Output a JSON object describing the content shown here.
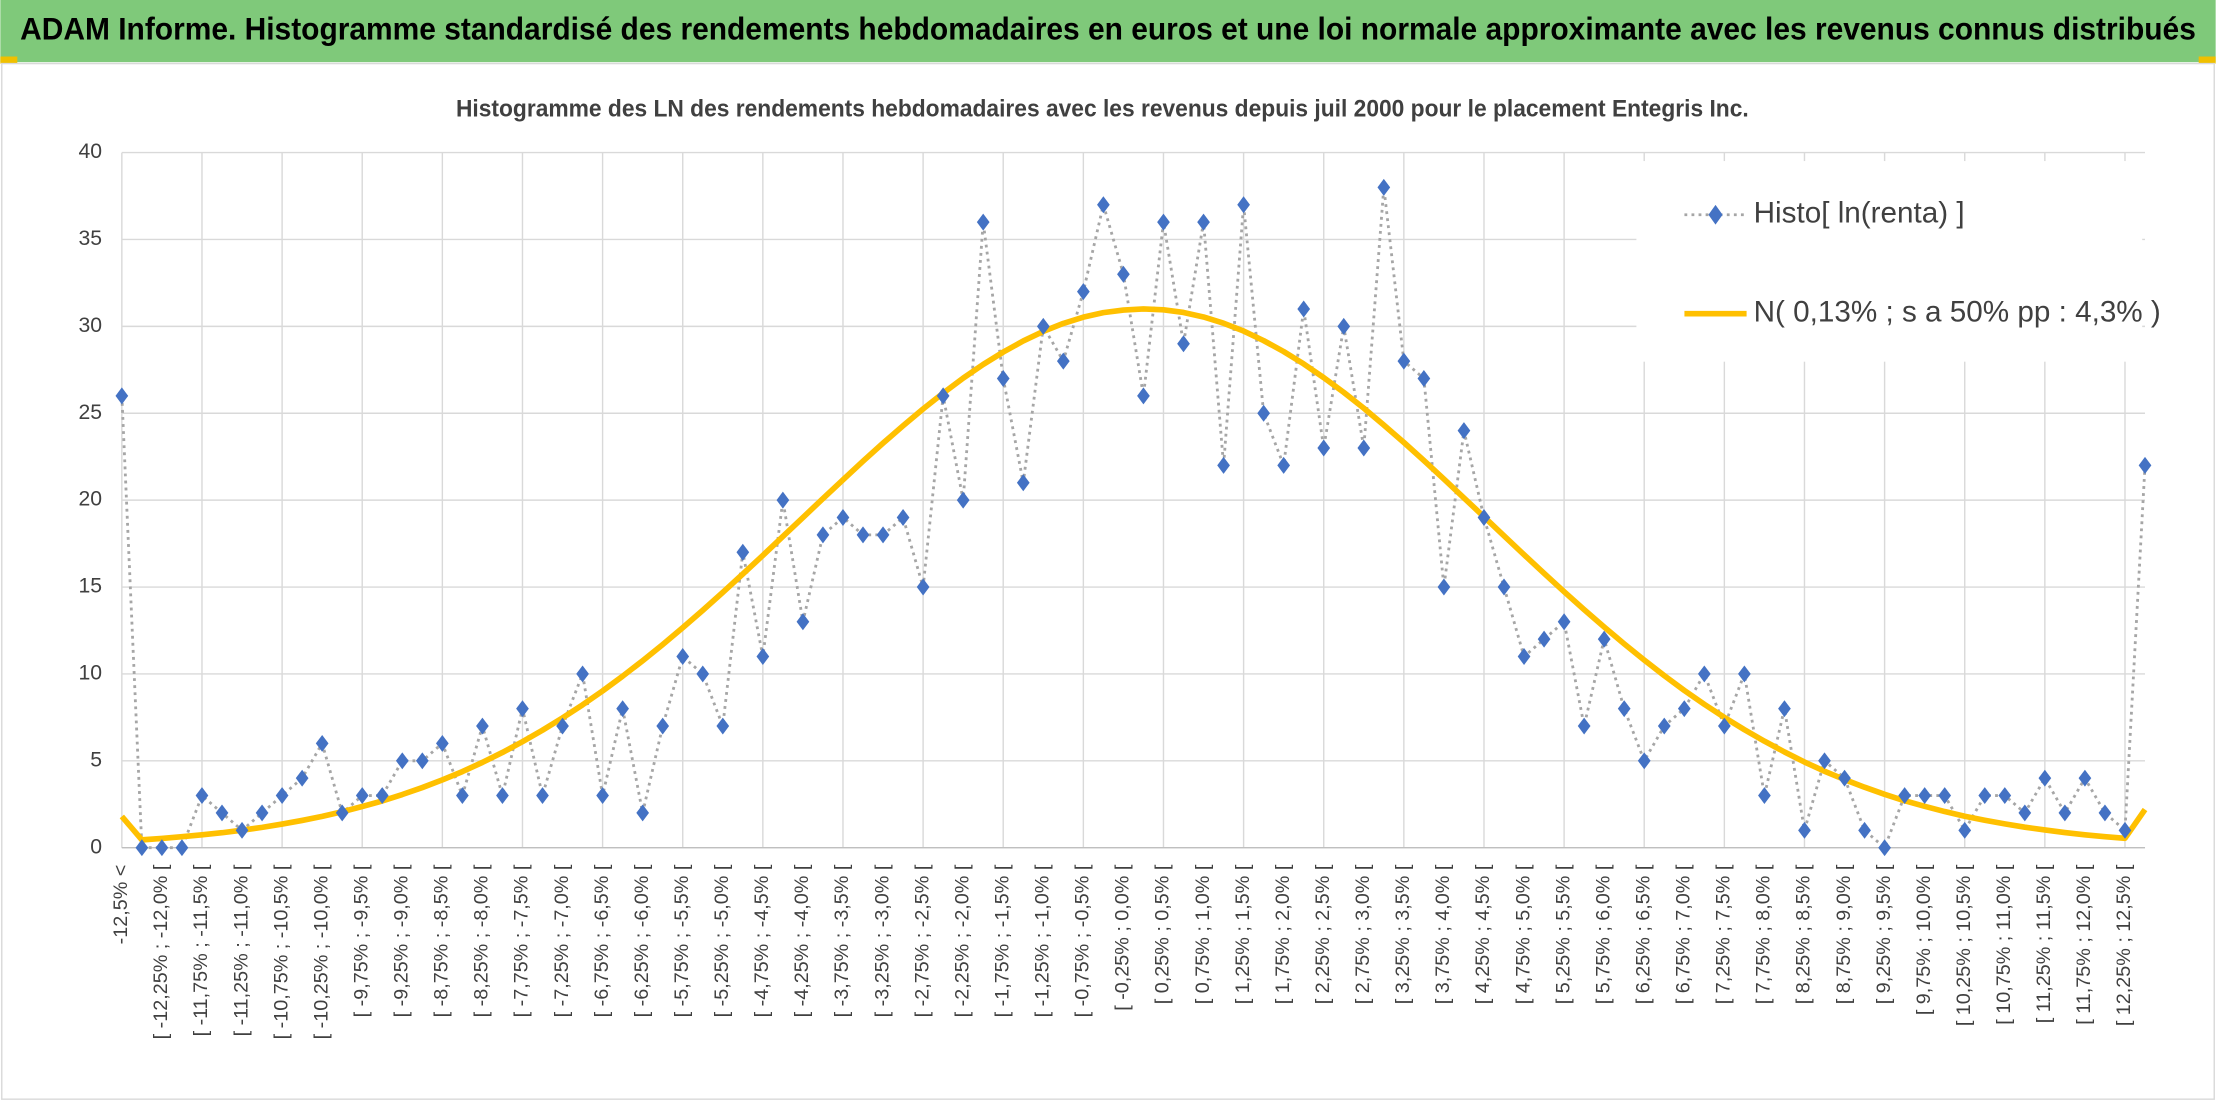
{
  "header": {
    "title": "ADAM Informe. Histogramme standardisé des rendements hebdomadaires en euros et une loi normale approximante avec les revenus connus distribués"
  },
  "chart_data": {
    "type": "line",
    "title": "Histogramme des LN des rendements hebdomadaires avec les revenus depuis juil 2000 pour le placement Entegris Inc.",
    "categories": [
      "-12,5% <",
      null,
      "[ -12,25% ; -12,0% [",
      null,
      "[ -11,75% ; -11,5% [",
      null,
      "[ -11,25% ; -11,0% [",
      null,
      "[ -10,75% ; -10,5% [",
      null,
      "[ -10,25% ; -10,0% [",
      null,
      "[ -9,75% ; -9,5% [",
      null,
      "[ -9,25% ; -9,0% [",
      null,
      "[ -8,75% ; -8,5% [",
      null,
      "[ -8,25% ; -8,0% [",
      null,
      "[ -7,75% ; -7,5% [",
      null,
      "[ -7,25% ; -7,0% [",
      null,
      "[ -6,75% ; -6,5% [",
      null,
      "[ -6,25% ; -6,0% [",
      null,
      "[ -5,75% ; -5,5% [",
      null,
      "[ -5,25% ; -5,0% [",
      null,
      "[ -4,75% ; -4,5% [",
      null,
      "[ -4,25% ; -4,0% [",
      null,
      "[ -3,75% ; -3,5% [",
      null,
      "[ -3,25% ; -3,0% [",
      null,
      "[ -2,75% ; -2,5% [",
      null,
      "[ -2,25% ; -2,0% [",
      null,
      "[ -1,75% ; -1,5% [",
      null,
      "[ -1,25% ; -1,0% [",
      null,
      "[ -0,75% ; -0,5% [",
      null,
      "[ -0,25% ; 0,0% [",
      null,
      "[ 0,25% ; 0,5% [",
      null,
      "[ 0,75% ; 1,0% [",
      null,
      "[ 1,25% ; 1,5% [",
      null,
      "[ 1,75% ; 2,0% [",
      null,
      "[ 2,25% ; 2,5% [",
      null,
      "[ 2,75% ; 3,0% [",
      null,
      "[ 3,25% ; 3,5% [",
      null,
      "[ 3,75% ; 4,0% [",
      null,
      "[ 4,25% ; 4,5% [",
      null,
      "[ 4,75% ; 5,0% [",
      null,
      "[ 5,25% ; 5,5% [",
      null,
      "[ 5,75% ; 6,0% [",
      null,
      "[ 6,25% ; 6,5% [",
      null,
      "[ 6,75% ; 7,0% [",
      null,
      "[ 7,25% ; 7,5% [",
      null,
      "[ 7,75% ; 8,0% [",
      null,
      "[ 8,25% ; 8,5% [",
      null,
      "[ 8,75% ; 9,0% [",
      null,
      "[ 9,25% ; 9,5% [",
      null,
      "[ 9,75% ; 10,0% [",
      null,
      "[ 10,25% ; 10,5% [",
      null,
      "[ 10,75% ; 11,0% [",
      null,
      "[ 11,25% ; 11,5% [",
      null,
      "[ 11,75% ; 12,0% [",
      null,
      "[ 12,25% ; 12,5% [",
      null
    ],
    "series": [
      {
        "name": "Histo[ ln(renta) ]",
        "color": "#4472c4",
        "line_color": "#a6a6a6",
        "values": [
          26,
          0,
          0,
          0,
          3,
          2,
          1,
          2,
          3,
          4,
          6,
          2,
          3,
          3,
          5,
          5,
          6,
          3,
          7,
          3,
          8,
          3,
          7,
          10,
          3,
          8,
          2,
          7,
          11,
          10,
          7,
          17,
          11,
          20,
          13,
          18,
          19,
          18,
          18,
          19,
          15,
          26,
          20,
          36,
          27,
          21,
          30,
          28,
          32,
          37,
          33,
          26,
          36,
          29,
          36,
          22,
          37,
          25,
          22,
          31,
          23,
          30,
          23,
          38,
          28,
          27,
          15,
          24,
          19,
          15,
          11,
          12,
          13,
          7,
          12,
          8,
          5,
          7,
          8,
          10,
          7,
          10,
          3,
          8,
          1,
          5,
          4,
          1,
          0,
          3,
          3,
          3,
          1,
          3,
          3,
          2,
          4,
          2,
          4,
          2,
          1,
          22
        ]
      },
      {
        "name": "N( 0,13% ; s a 50% pp : 4,3% )",
        "color": "#ffc000",
        "values": [
          1.8,
          0.45,
          0.53,
          0.63,
          0.74,
          0.86,
          1.01,
          1.17,
          1.36,
          1.57,
          1.8,
          2.07,
          2.37,
          2.69,
          3.06,
          3.46,
          3.9,
          4.38,
          4.91,
          5.48,
          6.1,
          6.76,
          7.47,
          8.22,
          9.02,
          9.87,
          10.76,
          11.69,
          12.66,
          13.66,
          14.69,
          15.75,
          16.82,
          17.91,
          19.0,
          20.09,
          21.17,
          22.24,
          23.28,
          24.28,
          25.25,
          26.16,
          27.02,
          27.81,
          28.52,
          29.16,
          29.71,
          30.17,
          30.53,
          30.79,
          30.94,
          31.0,
          30.95,
          30.8,
          30.54,
          30.18,
          29.73,
          29.18,
          28.55,
          27.84,
          27.05,
          26.2,
          25.29,
          24.32,
          23.32,
          22.28,
          21.21,
          20.13,
          19.04,
          17.95,
          16.86,
          15.79,
          14.73,
          13.7,
          12.7,
          11.73,
          10.8,
          9.9,
          9.05,
          8.25,
          7.5,
          6.79,
          6.13,
          5.51,
          4.93,
          4.4,
          3.92,
          3.48,
          3.07,
          2.7,
          2.38,
          2.08,
          1.81,
          1.58,
          1.37,
          1.18,
          1.02,
          0.87,
          0.74,
          0.63,
          0.54,
          2.2
        ]
      }
    ],
    "ylim": [
      0,
      40
    ],
    "yticks": [
      0,
      5,
      10,
      15,
      20,
      25,
      30,
      35,
      40
    ],
    "grid": true,
    "legend": "upper right"
  }
}
